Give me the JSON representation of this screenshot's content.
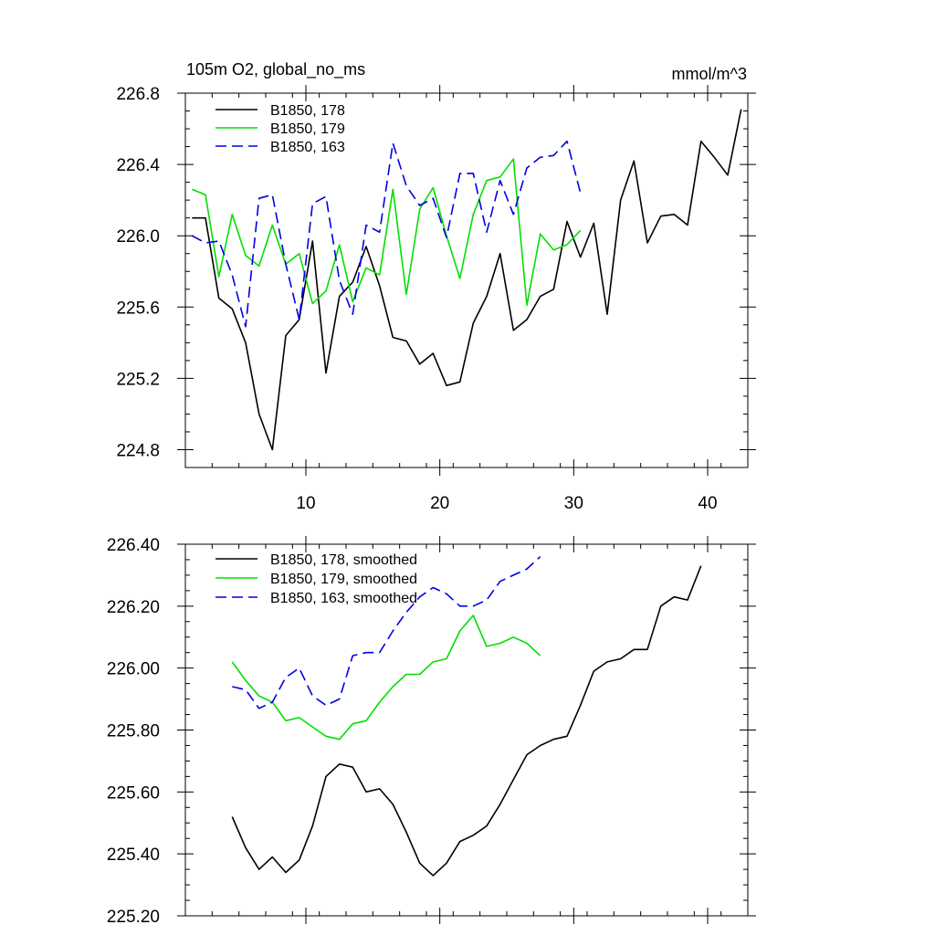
{
  "chart_data": [
    {
      "type": "line",
      "title": "105m O2, global_no_ms",
      "units": "mmol/m^3",
      "xlabel": "",
      "ylabel": "",
      "xlim": [
        1,
        43
      ],
      "ylim": [
        224.7,
        226.8
      ],
      "x_major_ticks": [
        10,
        20,
        30,
        40
      ],
      "x_tick_labels": [
        "10",
        "20",
        "30",
        "40"
      ],
      "y_major_ticks": [
        224.8,
        225.2,
        225.6,
        226.0,
        226.4,
        226.8
      ],
      "y_tick_labels": [
        "224.8",
        "225.2",
        "225.6",
        "226.0",
        "226.4",
        "226.8"
      ],
      "legend_position": "top-left",
      "series": [
        {
          "name": "B1850, 178",
          "color": "#000000",
          "dash": "solid",
          "x": [
            1.5,
            2.5,
            3.5,
            4.5,
            5.5,
            6.5,
            7.5,
            8.5,
            9.5,
            10.5,
            11.5,
            12.5,
            13.5,
            14.5,
            15.5,
            16.5,
            17.5,
            18.5,
            19.5,
            20.5,
            21.5,
            22.5,
            23.5,
            24.5,
            25.5,
            26.5,
            27.5,
            28.5,
            29.5,
            30.5,
            31.5,
            32.5,
            33.5,
            34.5,
            35.5,
            36.5,
            37.5,
            38.5,
            39.5,
            40.5,
            41.5,
            42.5
          ],
          "values": [
            226.1,
            226.1,
            225.65,
            225.59,
            225.4,
            225.0,
            224.8,
            225.44,
            225.53,
            225.97,
            225.23,
            225.66,
            225.74,
            225.94,
            225.72,
            225.43,
            225.41,
            225.28,
            225.34,
            225.16,
            225.18,
            225.51,
            225.66,
            225.9,
            225.47,
            225.53,
            225.66,
            225.7,
            226.08,
            225.88,
            226.07,
            225.56,
            226.2,
            226.42,
            225.96,
            226.11,
            226.12,
            226.06,
            226.53,
            226.44,
            226.34,
            226.71
          ]
        },
        {
          "name": "B1850, 179",
          "color": "#00e000",
          "dash": "solid",
          "x": [
            1.5,
            2.5,
            3.5,
            4.5,
            5.5,
            6.5,
            7.5,
            8.5,
            9.5,
            10.5,
            11.5,
            12.5,
            13.5,
            14.5,
            15.5,
            16.5,
            17.5,
            18.5,
            19.5,
            20.5,
            21.5,
            22.5,
            23.5,
            24.5,
            25.5,
            26.5,
            27.5,
            28.5,
            29.5,
            30.5
          ],
          "values": [
            226.26,
            226.23,
            225.77,
            226.12,
            225.89,
            225.83,
            226.06,
            225.84,
            225.9,
            225.62,
            225.69,
            225.95,
            225.63,
            225.82,
            225.78,
            226.26,
            225.67,
            226.15,
            226.27,
            226.0,
            225.76,
            226.12,
            226.31,
            226.33,
            226.43,
            225.61,
            226.01,
            225.92,
            225.95,
            226.03
          ]
        },
        {
          "name": "B1850, 163",
          "color": "#0000e6",
          "dash": "dashed",
          "x": [
            1.5,
            2.5,
            3.5,
            4.5,
            5.5,
            6.5,
            7.5,
            8.5,
            9.5,
            10.5,
            11.5,
            12.5,
            13.5,
            14.5,
            15.5,
            16.5,
            17.5,
            18.5,
            19.5,
            20.5,
            21.5,
            22.5,
            23.5,
            24.5,
            25.5,
            26.5,
            27.5,
            28.5,
            29.5,
            30.5
          ],
          "values": [
            226.0,
            225.96,
            225.97,
            225.78,
            225.49,
            226.21,
            226.23,
            225.84,
            225.53,
            226.18,
            226.22,
            225.75,
            225.56,
            226.06,
            226.02,
            226.52,
            226.28,
            226.17,
            226.21,
            225.99,
            226.35,
            226.35,
            226.02,
            226.31,
            226.12,
            226.38,
            226.44,
            226.45,
            226.53,
            226.24
          ]
        }
      ]
    },
    {
      "type": "line",
      "title": "",
      "xlabel": "",
      "ylabel": "",
      "xlim": [
        1,
        43
      ],
      "ylim": [
        225.2,
        226.4
      ],
      "x_major_ticks": [
        10,
        20,
        30,
        40
      ],
      "y_major_ticks": [
        225.2,
        225.4,
        225.6,
        225.8,
        226.0,
        226.2,
        226.4
      ],
      "y_tick_labels": [
        "225.20",
        "225.40",
        "225.60",
        "225.80",
        "226.00",
        "226.20",
        "226.40"
      ],
      "legend_position": "top-left",
      "series": [
        {
          "name": "B1850, 178, smoothed",
          "color": "#000000",
          "dash": "solid",
          "x": [
            4.5,
            5.5,
            6.5,
            7.5,
            8.5,
            9.5,
            10.5,
            11.5,
            12.5,
            13.5,
            14.5,
            15.5,
            16.5,
            17.5,
            18.5,
            19.5,
            20.5,
            21.5,
            22.5,
            23.5,
            24.5,
            25.5,
            26.5,
            27.5,
            28.5,
            29.5,
            30.5,
            31.5,
            32.5,
            33.5,
            34.5,
            35.5,
            36.5,
            37.5,
            38.5,
            39.5
          ],
          "values": [
            225.52,
            225.42,
            225.35,
            225.39,
            225.34,
            225.38,
            225.49,
            225.65,
            225.69,
            225.68,
            225.6,
            225.61,
            225.56,
            225.47,
            225.37,
            225.33,
            225.37,
            225.44,
            225.46,
            225.49,
            225.56,
            225.64,
            225.72,
            225.75,
            225.77,
            225.78,
            225.88,
            225.99,
            226.02,
            226.03,
            226.06,
            226.06,
            226.2,
            226.23,
            226.22,
            226.33
          ]
        },
        {
          "name": "B1850, 179, smoothed",
          "color": "#00e000",
          "dash": "solid",
          "x": [
            4.5,
            5.5,
            6.5,
            7.5,
            8.5,
            9.5,
            10.5,
            11.5,
            12.5,
            13.5,
            14.5,
            15.5,
            16.5,
            17.5,
            18.5,
            19.5,
            20.5,
            21.5,
            22.5,
            23.5,
            24.5,
            25.5,
            26.5,
            27.5
          ],
          "values": [
            226.02,
            225.96,
            225.91,
            225.89,
            225.83,
            225.84,
            225.81,
            225.78,
            225.77,
            225.82,
            225.83,
            225.89,
            225.94,
            225.98,
            225.98,
            226.02,
            226.03,
            226.12,
            226.17,
            226.07,
            226.08,
            226.1,
            226.08,
            226.04
          ]
        },
        {
          "name": "B1850, 163, smoothed",
          "color": "#0000e6",
          "dash": "dashed",
          "x": [
            4.5,
            5.5,
            6.5,
            7.5,
            8.5,
            9.5,
            10.5,
            11.5,
            12.5,
            13.5,
            14.5,
            15.5,
            16.5,
            17.5,
            18.5,
            19.5,
            20.5,
            21.5,
            22.5,
            23.5,
            24.5,
            25.5,
            26.5,
            27.5
          ],
          "values": [
            225.94,
            225.93,
            225.87,
            225.89,
            225.97,
            226.0,
            225.91,
            225.88,
            225.9,
            226.04,
            226.05,
            226.05,
            226.12,
            226.18,
            226.23,
            226.26,
            226.24,
            226.2,
            226.2,
            226.22,
            226.28,
            226.3,
            226.32,
            226.36
          ]
        }
      ]
    }
  ]
}
